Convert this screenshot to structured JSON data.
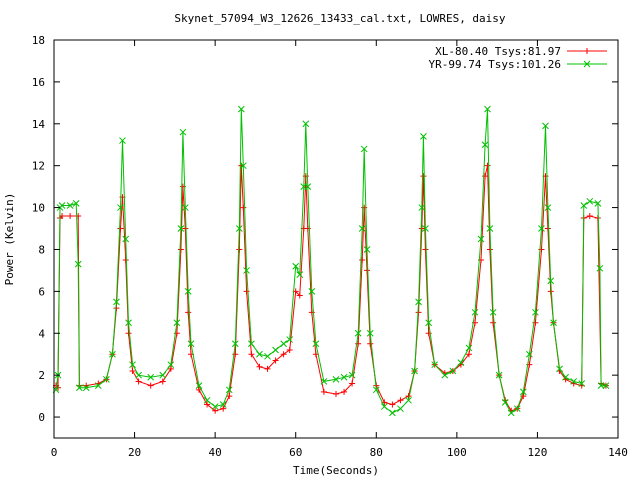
{
  "chart_data": {
    "type": "line",
    "title": "Skynet_57094_W3_12626_13433_cal.txt, LOWRES, daisy",
    "xlabel": "Time(Seconds)",
    "ylabel": "Power (Kelvin)",
    "xlim": [
      0,
      140
    ],
    "ylim": [
      -1,
      18
    ],
    "x_ticks": [
      0,
      20,
      40,
      60,
      80,
      100,
      120,
      140
    ],
    "y_ticks": [
      0,
      2,
      4,
      6,
      8,
      10,
      12,
      14,
      16,
      18
    ],
    "grid": false,
    "legend": "top-right",
    "series": [
      {
        "name": "XL-80.40 Tsys:81.97",
        "color": "#ff0000",
        "marker": "plus",
        "points": [
          [
            0.5,
            1.5
          ],
          [
            1,
            1.4
          ],
          [
            1.5,
            9.5
          ],
          [
            2,
            9.6
          ],
          [
            4,
            9.6
          ],
          [
            6,
            9.6
          ],
          [
            6.3,
            1.5
          ],
          [
            8,
            1.5
          ],
          [
            11,
            1.6
          ],
          [
            13,
            1.8
          ],
          [
            14.5,
            3.0
          ],
          [
            15.5,
            5.2
          ],
          [
            16.5,
            9.0
          ],
          [
            17,
            10.5
          ],
          [
            17.8,
            7.5
          ],
          [
            18.5,
            4.0
          ],
          [
            19.5,
            2.2
          ],
          [
            21,
            1.7
          ],
          [
            24,
            1.5
          ],
          [
            27,
            1.7
          ],
          [
            29,
            2.3
          ],
          [
            30.5,
            4.0
          ],
          [
            31.5,
            8.0
          ],
          [
            32,
            11.0
          ],
          [
            32.6,
            9.0
          ],
          [
            33.3,
            5.0
          ],
          [
            34,
            3.0
          ],
          [
            36,
            1.3
          ],
          [
            38,
            0.6
          ],
          [
            40,
            0.3
          ],
          [
            42,
            0.4
          ],
          [
            43.5,
            1.0
          ],
          [
            45,
            3.0
          ],
          [
            46,
            8.0
          ],
          [
            46.5,
            12.0
          ],
          [
            47,
            10.0
          ],
          [
            47.8,
            6.0
          ],
          [
            49,
            3.0
          ],
          [
            51,
            2.4
          ],
          [
            53,
            2.3
          ],
          [
            55,
            2.7
          ],
          [
            57,
            3.0
          ],
          [
            58.5,
            3.2
          ],
          [
            60,
            6.0
          ],
          [
            61,
            5.8
          ],
          [
            62,
            9.0
          ],
          [
            62.5,
            11.5
          ],
          [
            63,
            9.0
          ],
          [
            64,
            5.0
          ],
          [
            65,
            3.0
          ],
          [
            67,
            1.2
          ],
          [
            70,
            1.1
          ],
          [
            72,
            1.2
          ],
          [
            74,
            1.6
          ],
          [
            75.5,
            3.5
          ],
          [
            76.5,
            7.5
          ],
          [
            77,
            10.0
          ],
          [
            77.7,
            7.0
          ],
          [
            78.5,
            3.5
          ],
          [
            80,
            1.5
          ],
          [
            82,
            0.7
          ],
          [
            84,
            0.6
          ],
          [
            86,
            0.8
          ],
          [
            88,
            1.0
          ],
          [
            89.5,
            2.2
          ],
          [
            90.5,
            5.0
          ],
          [
            91.3,
            9.0
          ],
          [
            91.7,
            11.5
          ],
          [
            92.2,
            8.0
          ],
          [
            93,
            4.0
          ],
          [
            94.5,
            2.5
          ],
          [
            97,
            2.1
          ],
          [
            99,
            2.2
          ],
          [
            101,
            2.5
          ],
          [
            103,
            3.0
          ],
          [
            104.5,
            4.5
          ],
          [
            106,
            7.5
          ],
          [
            107,
            11.5
          ],
          [
            107.6,
            12.0
          ],
          [
            108.2,
            8.0
          ],
          [
            109,
            4.5
          ],
          [
            110.5,
            2.0
          ],
          [
            112,
            0.8
          ],
          [
            113.5,
            0.3
          ],
          [
            115,
            0.4
          ],
          [
            116.5,
            1.0
          ],
          [
            118,
            2.5
          ],
          [
            119.5,
            4.5
          ],
          [
            121,
            8.0
          ],
          [
            122,
            11.5
          ],
          [
            122.6,
            9.0
          ],
          [
            123.3,
            6.0
          ],
          [
            124,
            4.5
          ],
          [
            125.5,
            2.2
          ],
          [
            127,
            1.8
          ],
          [
            129,
            1.6
          ],
          [
            131,
            1.5
          ],
          [
            131.5,
            9.5
          ],
          [
            133,
            9.6
          ],
          [
            135,
            9.5
          ],
          [
            135.8,
            1.6
          ],
          [
            137,
            1.5
          ]
        ]
      },
      {
        "name": "YR-99.74 Tsys:101.26",
        "color": "#00c000",
        "marker": "cross",
        "points": [
          [
            0.5,
            1.3
          ],
          [
            1,
            2.0
          ],
          [
            1.5,
            10.0
          ],
          [
            2,
            10.1
          ],
          [
            4,
            10.1
          ],
          [
            5.5,
            10.2
          ],
          [
            6,
            7.3
          ],
          [
            6.3,
            1.4
          ],
          [
            8,
            1.4
          ],
          [
            11,
            1.5
          ],
          [
            13,
            1.8
          ],
          [
            14.5,
            3.0
          ],
          [
            15.5,
            5.5
          ],
          [
            16.5,
            10.0
          ],
          [
            17,
            13.2
          ],
          [
            17.8,
            8.5
          ],
          [
            18.5,
            4.5
          ],
          [
            19.5,
            2.5
          ],
          [
            21,
            2.0
          ],
          [
            24,
            1.9
          ],
          [
            27,
            2.0
          ],
          [
            29,
            2.5
          ],
          [
            30.5,
            4.5
          ],
          [
            31.5,
            9.0
          ],
          [
            32,
            13.6
          ],
          [
            32.6,
            10.0
          ],
          [
            33.3,
            6.0
          ],
          [
            34,
            3.5
          ],
          [
            36,
            1.5
          ],
          [
            38,
            0.8
          ],
          [
            40,
            0.5
          ],
          [
            42,
            0.6
          ],
          [
            43.5,
            1.3
          ],
          [
            45,
            3.5
          ],
          [
            46,
            9.0
          ],
          [
            46.5,
            14.7
          ],
          [
            47,
            12.0
          ],
          [
            47.8,
            7.0
          ],
          [
            49,
            3.5
          ],
          [
            51,
            3.0
          ],
          [
            53,
            2.9
          ],
          [
            55,
            3.2
          ],
          [
            57,
            3.5
          ],
          [
            58.5,
            3.7
          ],
          [
            60,
            7.2
          ],
          [
            61,
            6.8
          ],
          [
            62,
            11.0
          ],
          [
            62.5,
            14.0
          ],
          [
            63,
            11.0
          ],
          [
            64,
            6.0
          ],
          [
            65,
            3.5
          ],
          [
            67,
            1.7
          ],
          [
            70,
            1.8
          ],
          [
            72,
            1.9
          ],
          [
            74,
            2.0
          ],
          [
            75.5,
            4.0
          ],
          [
            76.5,
            9.0
          ],
          [
            77,
            12.8
          ],
          [
            77.7,
            8.0
          ],
          [
            78.5,
            4.0
          ],
          [
            80,
            1.3
          ],
          [
            82,
            0.5
          ],
          [
            84,
            0.2
          ],
          [
            86,
            0.4
          ],
          [
            88,
            0.8
          ],
          [
            89.5,
            2.2
          ],
          [
            90.5,
            5.5
          ],
          [
            91.3,
            10.0
          ],
          [
            91.7,
            13.4
          ],
          [
            92.2,
            9.0
          ],
          [
            93,
            4.5
          ],
          [
            94.5,
            2.5
          ],
          [
            97,
            2.0
          ],
          [
            99,
            2.2
          ],
          [
            101,
            2.6
          ],
          [
            103,
            3.3
          ],
          [
            104.5,
            5.0
          ],
          [
            106,
            8.5
          ],
          [
            107,
            13.0
          ],
          [
            107.6,
            14.7
          ],
          [
            108.2,
            9.0
          ],
          [
            109,
            5.0
          ],
          [
            110.5,
            2.0
          ],
          [
            112,
            0.7
          ],
          [
            113.5,
            0.2
          ],
          [
            115,
            0.4
          ],
          [
            116.5,
            1.2
          ],
          [
            118,
            3.0
          ],
          [
            119.5,
            5.0
          ],
          [
            121,
            9.0
          ],
          [
            122,
            13.9
          ],
          [
            122.6,
            10.0
          ],
          [
            123.3,
            6.5
          ],
          [
            124,
            4.5
          ],
          [
            125.5,
            2.3
          ],
          [
            127,
            1.9
          ],
          [
            129,
            1.7
          ],
          [
            131,
            1.6
          ],
          [
            131.5,
            10.1
          ],
          [
            133,
            10.3
          ],
          [
            135,
            10.2
          ],
          [
            135.5,
            7.1
          ],
          [
            135.8,
            1.5
          ],
          [
            137,
            1.5
          ]
        ]
      }
    ]
  }
}
